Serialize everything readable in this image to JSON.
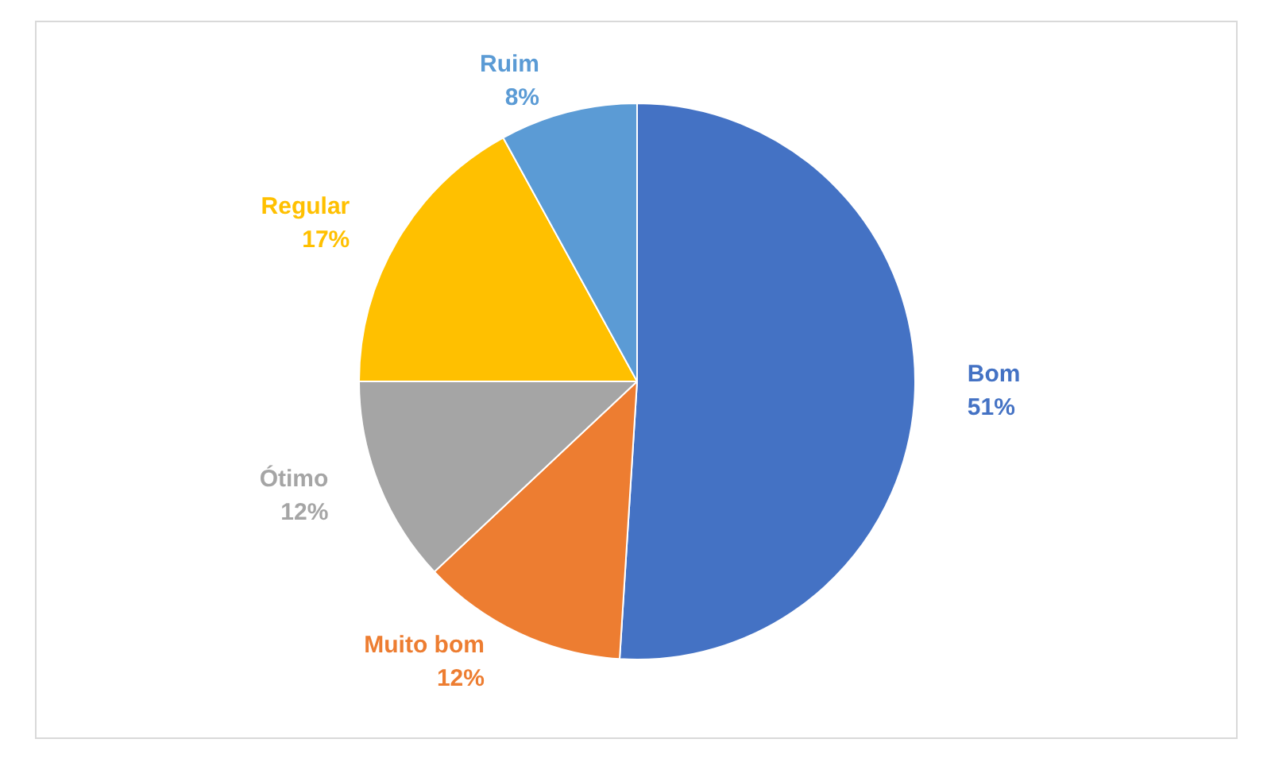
{
  "chart_data": {
    "type": "pie",
    "categories": [
      "Bom",
      "Muito bom",
      "Ótimo",
      "Regular",
      "Ruim"
    ],
    "values": [
      51,
      12,
      12,
      17,
      8
    ],
    "colors": [
      "#4472c4",
      "#ed7d31",
      "#a5a5a5",
      "#ffc000",
      "#5b9bd5"
    ],
    "value_labels": [
      "51%",
      "12%",
      "12%",
      "17%",
      "8%"
    ]
  }
}
